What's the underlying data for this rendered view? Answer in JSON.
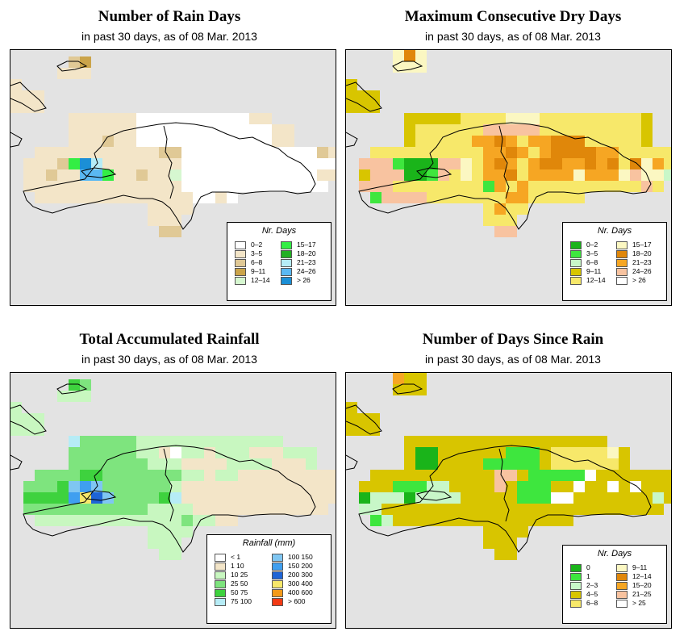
{
  "panels": [
    {
      "title": "Number of Rain Days",
      "subtitle": "in past 30 days, as of  08 Mar. 2013",
      "legend": {
        "title": "Nr. Days",
        "items": [
          {
            "label": "0–2",
            "color": "#ffffff"
          },
          {
            "label": "3–5",
            "color": "#f3e5c8"
          },
          {
            "label": "6–8",
            "color": "#e0c996"
          },
          {
            "label": "9–11",
            "color": "#cba44a"
          },
          {
            "label": "12–14",
            "color": "#d6f7d0"
          },
          {
            "label": "15–17",
            "color": "#33ee44"
          },
          {
            "label": "18–20",
            "color": "#22b022"
          },
          {
            "label": "21–23",
            "color": "#b6ecf6"
          },
          {
            "label": "24–26",
            "color": "#5ab8f2"
          },
          {
            "label": "> 26",
            "color": "#1b8fd6"
          }
        ]
      }
    },
    {
      "title": "Maximum Consecutive Dry Days",
      "subtitle": "in past 30 days, as of  08 Mar. 2013",
      "legend": {
        "title": "Nr. Days",
        "items": [
          {
            "label": "0–2",
            "color": "#1ab41a"
          },
          {
            "label": "3–5",
            "color": "#3ee63e"
          },
          {
            "label": "6–8",
            "color": "#c8f7c8"
          },
          {
            "label": "9–11",
            "color": "#d8c500"
          },
          {
            "label": "12–14",
            "color": "#f7e86a"
          },
          {
            "label": "15–17",
            "color": "#fbf7c2"
          },
          {
            "label": "18–20",
            "color": "#e0870a"
          },
          {
            "label": "21–23",
            "color": "#f6a623"
          },
          {
            "label": "24–26",
            "color": "#f8c3a0"
          },
          {
            "label": "> 26",
            "color": "#ffffff"
          }
        ]
      }
    },
    {
      "title": "Total Accumulated Rainfall",
      "subtitle": "in past 30 days, as of  08 Mar. 2013",
      "legend": {
        "title": "Rainfall (mm)",
        "items": [
          {
            "label": "< 1",
            "color": "#ffffff"
          },
          {
            "label": "1    10",
            "color": "#f3e5c8"
          },
          {
            "label": "10    25",
            "color": "#c8f7c0"
          },
          {
            "label": "25    50",
            "color": "#7ee47e"
          },
          {
            "label": "50    75",
            "color": "#3ed23e"
          },
          {
            "label": "75   100",
            "color": "#b6ecf6"
          },
          {
            "label": "100   150",
            "color": "#7fc6f2"
          },
          {
            "label": "150   200",
            "color": "#3f9ff0"
          },
          {
            "label": "200   300",
            "color": "#1e64d6"
          },
          {
            "label": "300   400",
            "color": "#f7e86a"
          },
          {
            "label": "400   600",
            "color": "#f39a1a"
          },
          {
            "label": "> 600",
            "color": "#f23a14"
          }
        ]
      }
    },
    {
      "title": "Number of Days Since Rain",
      "subtitle": "in past 30 days, as of  08 Mar. 2013",
      "legend": {
        "title": "Nr. Days",
        "items": [
          {
            "label": "0",
            "color": "#1ab41a"
          },
          {
            "label": "1",
            "color": "#3ee63e"
          },
          {
            "label": "2–3",
            "color": "#c8f7c8"
          },
          {
            "label": "4–5",
            "color": "#d8c500"
          },
          {
            "label": "6–8",
            "color": "#f7e86a"
          },
          {
            "label": "9–11",
            "color": "#fbf7c2"
          },
          {
            "label": "12–14",
            "color": "#e0870a"
          },
          {
            "label": "15–20",
            "color": "#f6a623"
          },
          {
            "label": "21–25",
            "color": "#f8c3a0"
          },
          {
            "label": "> 25",
            "color": "#ffffff"
          }
        ]
      }
    }
  ]
}
